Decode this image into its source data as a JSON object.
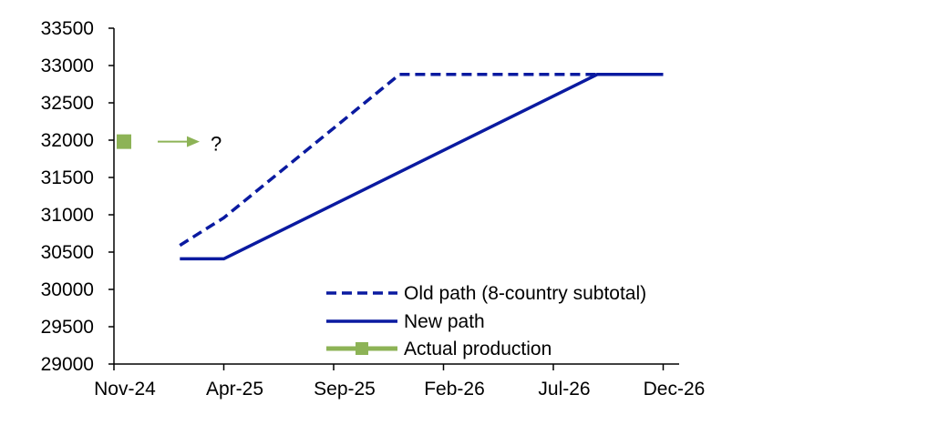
{
  "chart_data": {
    "type": "line",
    "ylim": [
      29000,
      33500
    ],
    "yticks": [
      29000,
      29500,
      30000,
      30500,
      31000,
      31500,
      32000,
      32500,
      33000,
      33500
    ],
    "xticks": [
      "Nov-24",
      "Apr-25",
      "Sep-25",
      "Feb-26",
      "Jul-26",
      "Dec-26"
    ],
    "xlim": [
      "2024-11-01",
      "2026-12-01"
    ],
    "grid": false,
    "legend_position": "bottom-right",
    "series": [
      {
        "name": "Old path (8-country subtotal)",
        "style": "dashed",
        "color": "#0a1aa0",
        "points": [
          {
            "x": "2025-02-01",
            "y": 30590
          },
          {
            "x": "2025-04-01",
            "y": 30960
          },
          {
            "x": "2025-12-01",
            "y": 32880
          },
          {
            "x": "2026-12-01",
            "y": 32880
          }
        ]
      },
      {
        "name": "New path",
        "style": "solid",
        "color": "#0a1aa0",
        "points": [
          {
            "x": "2025-02-01",
            "y": 30410
          },
          {
            "x": "2025-04-01",
            "y": 30410
          },
          {
            "x": "2026-09-01",
            "y": 32880
          },
          {
            "x": "2026-12-01",
            "y": 32880
          }
        ]
      },
      {
        "name": "Actual production",
        "style": "solid-marker",
        "color": "#8db356",
        "points": [
          {
            "x": "2024-11-01",
            "y": 31980
          }
        ]
      }
    ],
    "annotation": {
      "text": "?",
      "color": "#8db356"
    }
  }
}
